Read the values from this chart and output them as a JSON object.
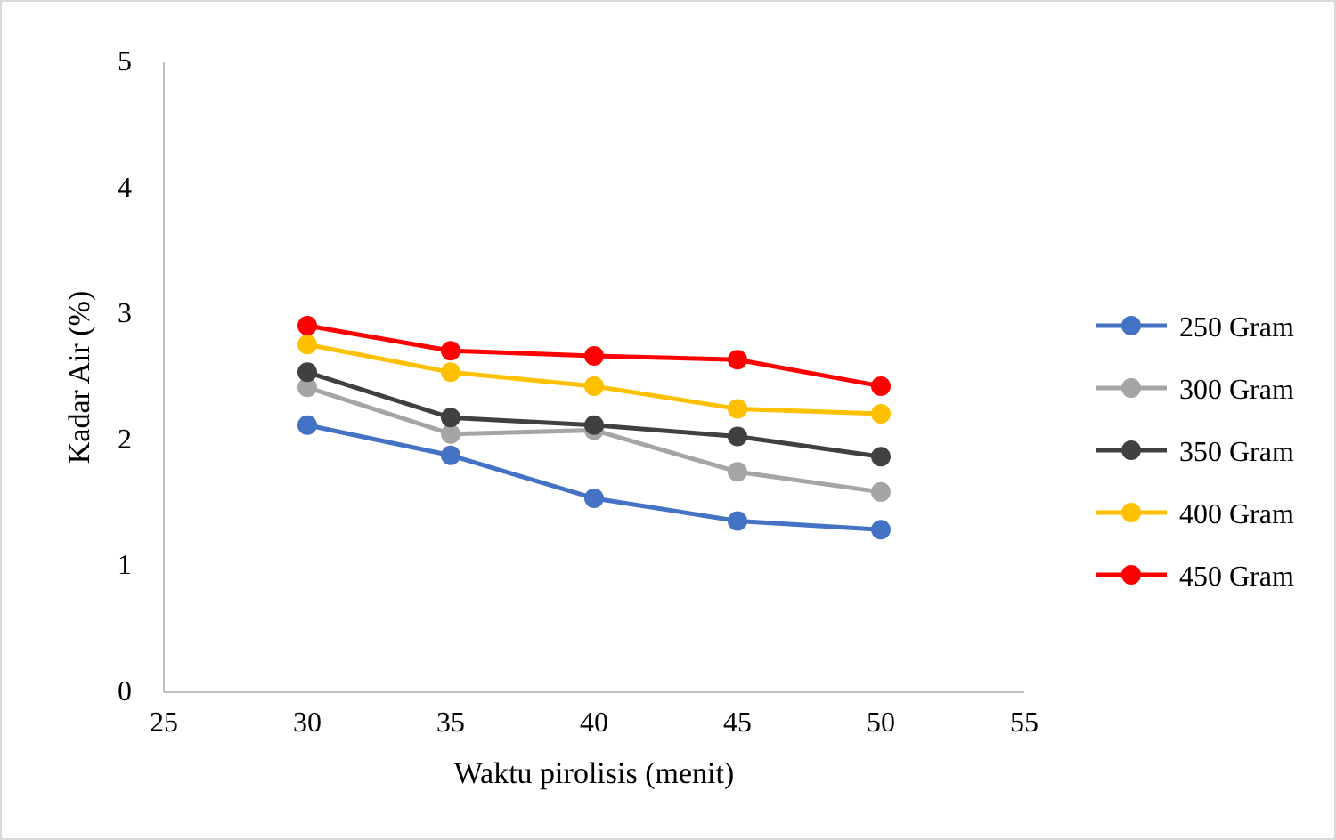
{
  "chart_data": {
    "type": "line",
    "xlabel": "Waktu pirolisis (menit)",
    "ylabel": "Kadar Air (%)",
    "x": [
      30,
      35,
      40,
      45,
      50
    ],
    "xlim": [
      25,
      55
    ],
    "xticks": [
      25,
      30,
      35,
      40,
      45,
      50,
      55
    ],
    "ylim": [
      0,
      5
    ],
    "yticks": [
      0,
      1,
      2,
      3,
      4,
      5
    ],
    "grid": false,
    "legend": "right",
    "marker": "circle",
    "line_style": "solid",
    "series": [
      {
        "name": "250 Gram",
        "color": "#4472c4",
        "values": [
          2.12,
          1.88,
          1.54,
          1.36,
          1.29
        ]
      },
      {
        "name": "300 Gram",
        "color": "#a5a5a5",
        "values": [
          2.42,
          2.05,
          2.08,
          1.75,
          1.59
        ]
      },
      {
        "name": "350 Gram",
        "color": "#404040",
        "values": [
          2.54,
          2.18,
          2.12,
          2.03,
          1.87
        ]
      },
      {
        "name": "400 Gram",
        "color": "#ffc000",
        "values": [
          2.76,
          2.54,
          2.43,
          2.25,
          2.21
        ]
      },
      {
        "name": "450 Gram",
        "color": "#ff0000",
        "values": [
          2.91,
          2.71,
          2.67,
          2.64,
          2.43
        ]
      }
    ]
  }
}
